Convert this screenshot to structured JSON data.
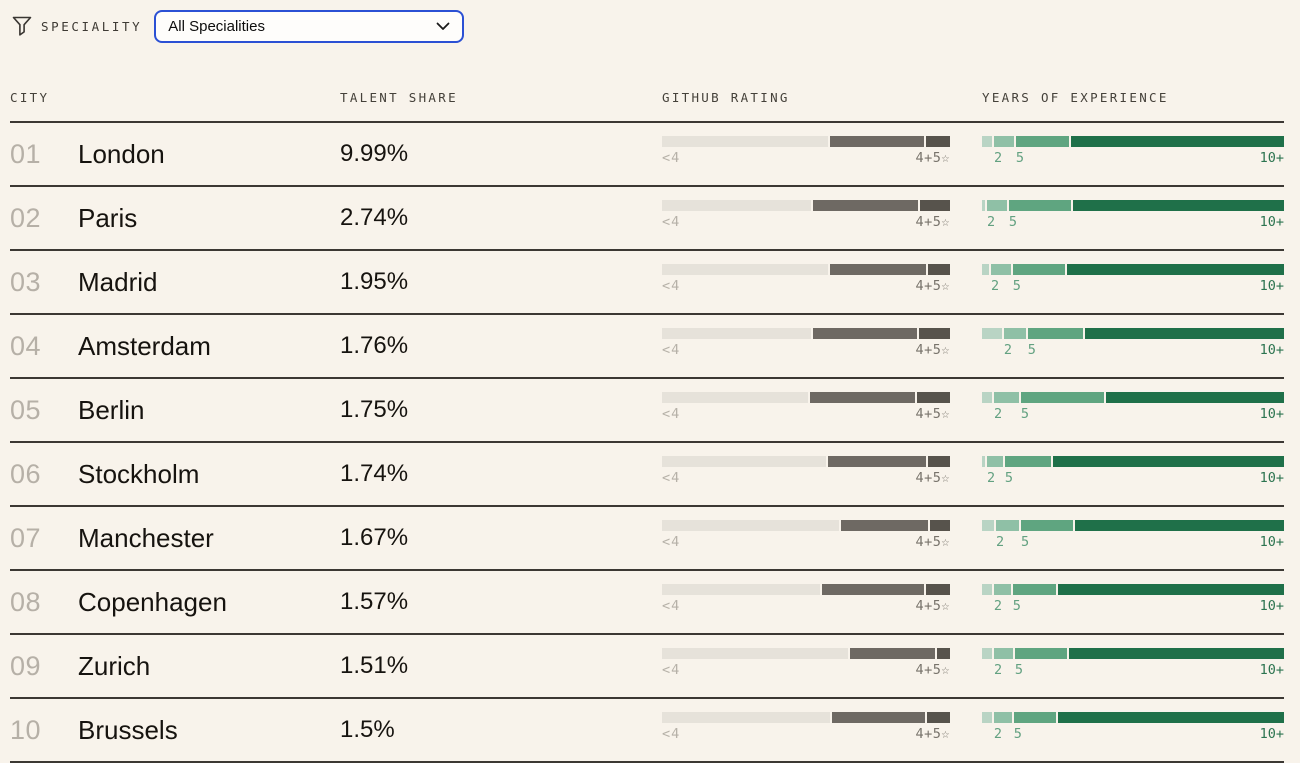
{
  "filter": {
    "label": "SPECIALITY",
    "dropdown_value": "All Specialities"
  },
  "table": {
    "columns": [
      "CITY",
      "TALENT SHARE",
      "GITHUB RATING",
      "YEARS OF EXPERIENCE"
    ],
    "github_legend": {
      "left": "<4",
      "right": "4+5☆"
    },
    "years_legend": {
      "two": "2",
      "five": "5",
      "ten": "10+"
    },
    "rows": [
      {
        "rank": "01",
        "city": "London",
        "share": "9.99%",
        "github": [
          167,
          95,
          24
        ],
        "years": [
          10,
          20,
          53,
          214
        ]
      },
      {
        "rank": "02",
        "city": "Paris",
        "share": "2.74%",
        "github": [
          150,
          106,
          30
        ],
        "years": [
          3,
          20,
          62,
          212
        ]
      },
      {
        "rank": "03",
        "city": "Madrid",
        "share": "1.95%",
        "github": [
          167,
          97,
          22
        ],
        "years": [
          7,
          20,
          53,
          218
        ]
      },
      {
        "rank": "04",
        "city": "Amsterdam",
        "share": "1.76%",
        "github": [
          150,
          105,
          31
        ],
        "years": [
          20,
          22,
          56,
          200
        ]
      },
      {
        "rank": "05",
        "city": "Berlin",
        "share": "1.75%",
        "github": [
          147,
          106,
          33
        ],
        "years": [
          10,
          25,
          83,
          179
        ]
      },
      {
        "rank": "06",
        "city": "Stockholm",
        "share": "1.74%",
        "github": [
          165,
          99,
          22
        ],
        "years": [
          3,
          16,
          46,
          233
        ]
      },
      {
        "rank": "07",
        "city": "Manchester",
        "share": "1.67%",
        "github": [
          178,
          88,
          20
        ],
        "years": [
          12,
          23,
          52,
          209
        ]
      },
      {
        "rank": "08",
        "city": "Copenhagen",
        "share": "1.57%",
        "github": [
          159,
          103,
          24
        ],
        "years": [
          10,
          17,
          43,
          228
        ]
      },
      {
        "rank": "09",
        "city": "Zurich",
        "share": "1.51%",
        "github": [
          187,
          86,
          13
        ],
        "years": [
          10,
          19,
          52,
          216
        ]
      },
      {
        "rank": "10",
        "city": "Brussels",
        "share": "1.5%",
        "github": [
          169,
          94,
          23
        ],
        "years": [
          10,
          18,
          42,
          228
        ]
      }
    ]
  },
  "colors": {
    "accent_blue": "#2b50d4",
    "background": "#f8f3eb",
    "divider": "#3c3833",
    "github_segments": [
      "#e6e2da",
      "#6e6963",
      "#57534c"
    ],
    "years_segments": [
      "#b9d4c4",
      "#8fc0a6",
      "#5fa580",
      "#1f7049"
    ]
  }
}
